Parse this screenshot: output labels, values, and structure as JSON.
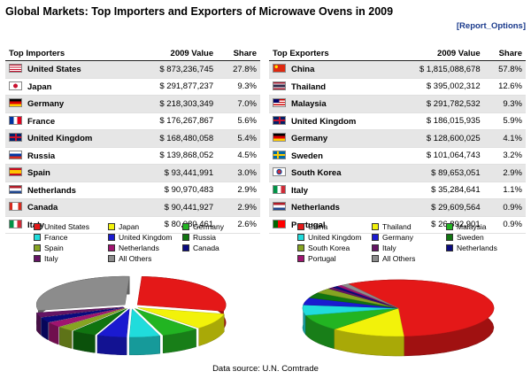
{
  "title": "Global Markets: Top Importers and Exporters of Microwave Ovens in 2009",
  "report_options": "[Report_Options]",
  "source": "Data source: U.N. Comtrade",
  "importers": {
    "headers": {
      "country": "Top Importers",
      "value": "2009 Value",
      "share": "Share"
    },
    "rows": [
      {
        "country": "United States",
        "value": "$ 873,236,745",
        "share": "27.8%",
        "flag": "us"
      },
      {
        "country": "Japan",
        "value": "$ 291,877,237",
        "share": "9.3%",
        "flag": "jp"
      },
      {
        "country": "Germany",
        "value": "$ 218,303,349",
        "share": "7.0%",
        "flag": "de"
      },
      {
        "country": "France",
        "value": "$ 176,267,867",
        "share": "5.6%",
        "flag": "fr"
      },
      {
        "country": "United Kingdom",
        "value": "$ 168,480,058",
        "share": "5.4%",
        "flag": "uk"
      },
      {
        "country": "Russia",
        "value": "$ 139,868,052",
        "share": "4.5%",
        "flag": "ru"
      },
      {
        "country": "Spain",
        "value": "$ 93,441,991",
        "share": "3.0%",
        "flag": "es"
      },
      {
        "country": "Netherlands",
        "value": "$ 90,970,483",
        "share": "2.9%",
        "flag": "nl"
      },
      {
        "country": "Canada",
        "value": "$ 90,441,927",
        "share": "2.9%",
        "flag": "ca"
      },
      {
        "country": "Italy",
        "value": "$ 80,080,461",
        "share": "2.6%",
        "flag": "it"
      }
    ]
  },
  "exporters": {
    "headers": {
      "country": "Top Exporters",
      "value": "2009 Value",
      "share": "Share"
    },
    "rows": [
      {
        "country": "China",
        "value": "$ 1,815,088,678",
        "share": "57.8%",
        "flag": "cn"
      },
      {
        "country": "Thailand",
        "value": "$ 395,002,312",
        "share": "12.6%",
        "flag": "th"
      },
      {
        "country": "Malaysia",
        "value": "$ 291,782,532",
        "share": "9.3%",
        "flag": "my"
      },
      {
        "country": "United Kingdom",
        "value": "$ 186,015,935",
        "share": "5.9%",
        "flag": "uk"
      },
      {
        "country": "Germany",
        "value": "$ 128,600,025",
        "share": "4.1%",
        "flag": "de"
      },
      {
        "country": "Sweden",
        "value": "$ 101,064,743",
        "share": "3.2%",
        "flag": "se"
      },
      {
        "country": "South Korea",
        "value": "$ 89,653,051",
        "share": "2.9%",
        "flag": "kr"
      },
      {
        "country": "Italy",
        "value": "$ 35,284,641",
        "share": "1.1%",
        "flag": "it"
      },
      {
        "country": "Netherlands",
        "value": "$ 29,609,564",
        "share": "0.9%",
        "flag": "nl"
      },
      {
        "country": "Portugal",
        "value": "$ 26,892,901",
        "share": "0.9%",
        "flag": "pt"
      }
    ]
  },
  "chart_data": [
    {
      "type": "pie",
      "title": "Top Importers",
      "categories": [
        "United States",
        "Japan",
        "Germany",
        "France",
        "United Kingdom",
        "Russia",
        "Spain",
        "Netherlands",
        "Canada",
        "Italy",
        "All Others"
      ],
      "values": [
        27.8,
        9.3,
        7.0,
        5.6,
        5.4,
        4.5,
        3.0,
        2.9,
        2.9,
        2.6,
        29.0
      ],
      "colors": [
        "#e41818",
        "#f2f20a",
        "#22b422",
        "#20dcdc",
        "#1a1ad0",
        "#107410",
        "#86a422",
        "#a01470",
        "#0a0a80",
        "#641464",
        "#8c8c8c"
      ],
      "legend": "top"
    },
    {
      "type": "pie",
      "title": "Top Exporters",
      "categories": [
        "China",
        "Thailand",
        "Malaysia",
        "United Kingdom",
        "Germany",
        "Sweden",
        "South Korea",
        "Italy",
        "Netherlands",
        "Portugal",
        "All Others"
      ],
      "values": [
        57.8,
        12.6,
        9.3,
        5.9,
        4.1,
        3.2,
        2.9,
        1.1,
        0.9,
        0.9,
        1.3
      ],
      "colors": [
        "#e41818",
        "#f2f20a",
        "#22b422",
        "#20dcdc",
        "#1a1ad0",
        "#107410",
        "#86a422",
        "#641464",
        "#0a0a80",
        "#a01470",
        "#8c8c8c"
      ],
      "legend": "top"
    }
  ]
}
